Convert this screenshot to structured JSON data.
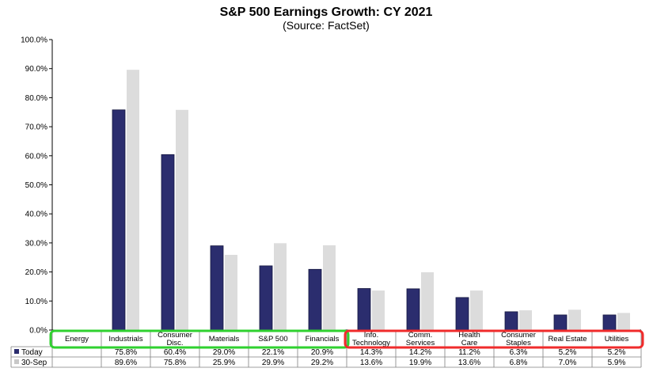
{
  "chart_data": {
    "type": "bar",
    "title": "S&P 500 Earnings Growth: CY 2021",
    "subtitle": "(Source: FactSet)",
    "ylim": [
      0,
      100
    ],
    "yticks": [
      "0.0%",
      "10.0%",
      "20.0%",
      "30.0%",
      "40.0%",
      "50.0%",
      "60.0%",
      "70.0%",
      "80.0%",
      "90.0%",
      "100.0%"
    ],
    "grid": false,
    "legend": "table-bottom-left",
    "categories": [
      [
        "Energy"
      ],
      [
        "Industrials"
      ],
      [
        "Consumer",
        "Disc."
      ],
      [
        "Materials"
      ],
      [
        "S&P 500"
      ],
      [
        "Financials"
      ],
      [
        "Info.",
        "Technology"
      ],
      [
        "Comm.",
        "Services"
      ],
      [
        "Health",
        "Care"
      ],
      [
        "Consumer",
        "Staples"
      ],
      [
        "Real Estate"
      ],
      [
        "Utilities"
      ]
    ],
    "series": [
      {
        "name": "Today",
        "color": "#2b2d6e",
        "values": [
          null,
          75.8,
          60.4,
          29.0,
          22.1,
          20.9,
          14.3,
          14.2,
          11.2,
          6.3,
          5.2,
          5.2
        ],
        "labels": [
          "",
          "75.8%",
          "60.4%",
          "29.0%",
          "22.1%",
          "20.9%",
          "14.3%",
          "14.2%",
          "11.2%",
          "6.3%",
          "5.2%",
          "5.2%"
        ]
      },
      {
        "name": "30-Sep",
        "color": "#dcdcdc",
        "values": [
          null,
          89.6,
          75.8,
          25.9,
          29.9,
          29.2,
          13.6,
          19.9,
          13.6,
          6.8,
          7.0,
          5.9
        ],
        "labels": [
          "",
          "89.6%",
          "75.8%",
          "25.9%",
          "29.9%",
          "29.2%",
          "13.6%",
          "19.9%",
          "13.6%",
          "6.8%",
          "7.0%",
          "5.9%"
        ]
      }
    ],
    "highlights": [
      {
        "color": "#2fd12f",
        "from": 0,
        "to": 5
      },
      {
        "color": "#f02b2b",
        "from": 6,
        "to": 11
      }
    ]
  }
}
